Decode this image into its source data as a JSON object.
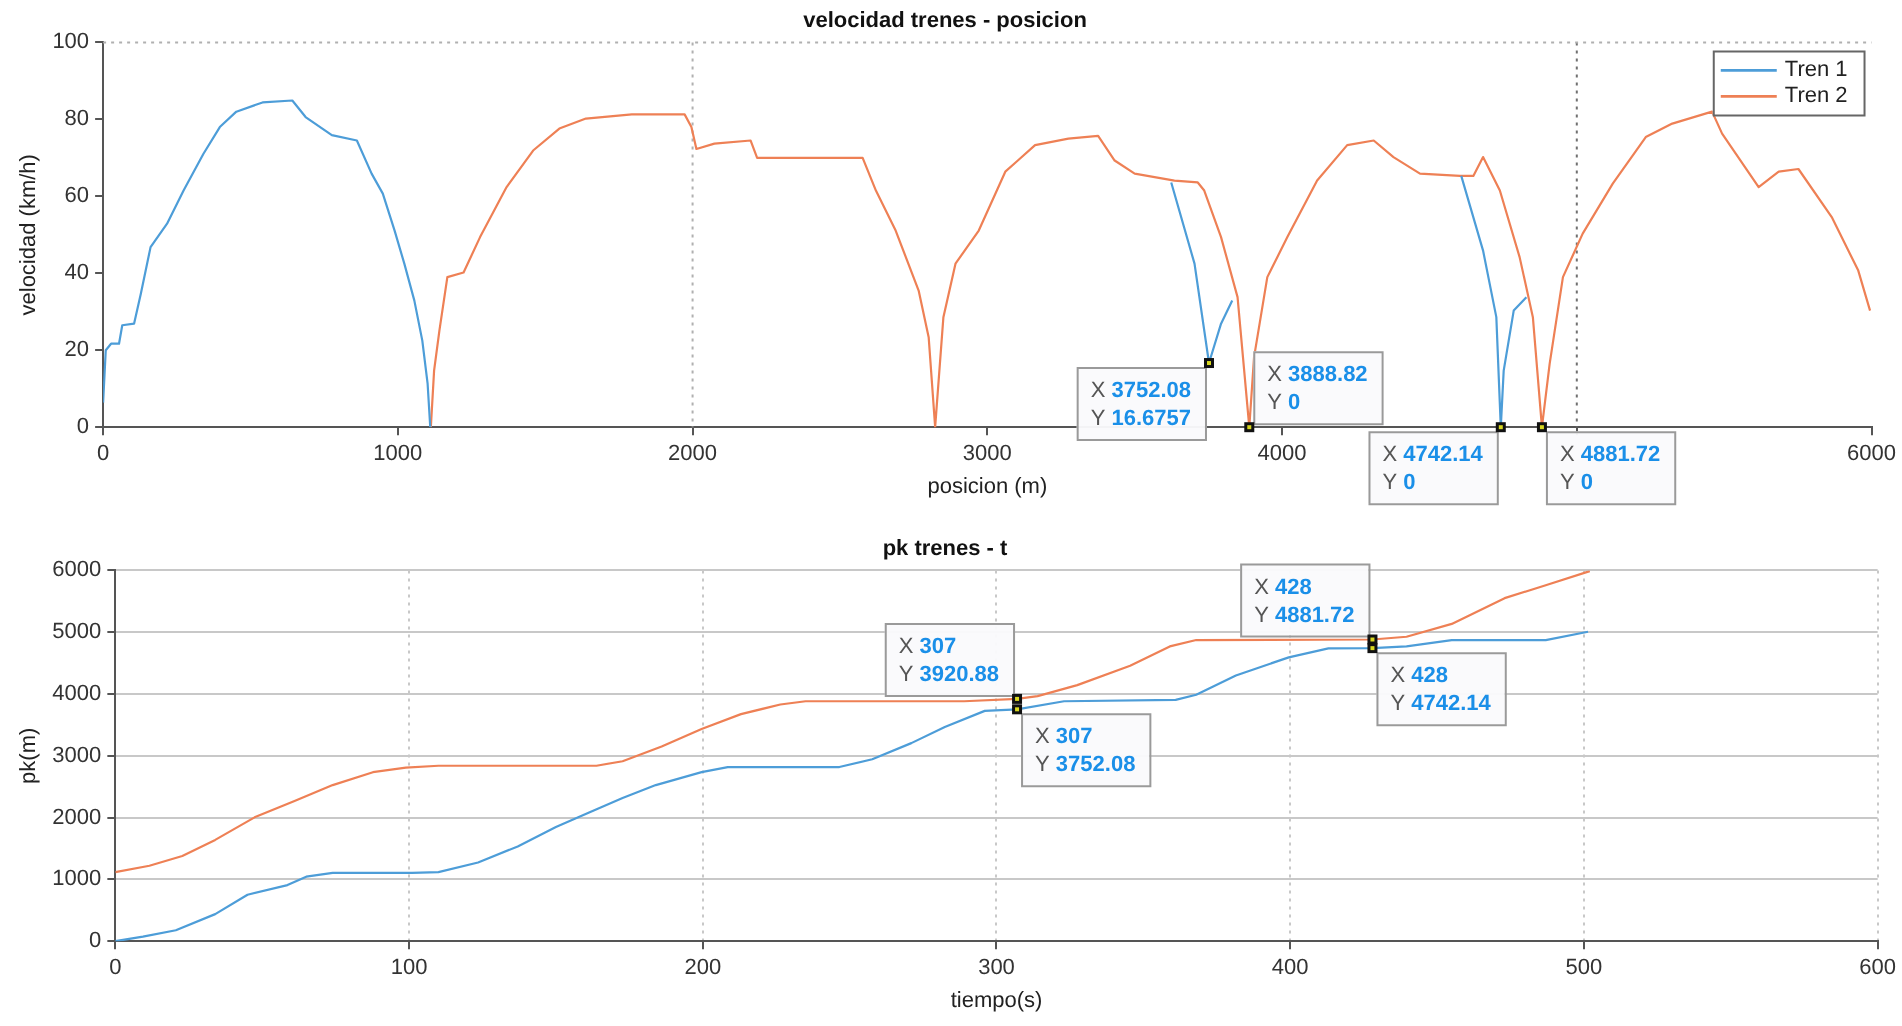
{
  "chart_data": [
    {
      "type": "line",
      "title": "velocidad trenes - posicion",
      "xlabel": "posicion (m)",
      "ylabel": "velocidad (km/h)",
      "xlim": [
        0,
        6000
      ],
      "xticks": [
        0,
        1000,
        2000,
        3000,
        4000,
        {
          "value": 5000,
          "label": null
        },
        6000
      ],
      "ylim": [
        0,
        100
      ],
      "yticks": [
        0,
        20,
        40,
        60,
        80,
        100
      ],
      "grid": false,
      "legend": "top right",
      "ref_lines": [
        {
          "axis": "x",
          "value": 2000,
          "color": "#b0b0b0",
          "line_style": "dotted"
        },
        {
          "axis": "x",
          "value": 5000,
          "color": "#707070",
          "line_style": "dotted"
        },
        {
          "axis": "y",
          "value": 100,
          "color": "#b0b0b0",
          "line_style": "dotted"
        }
      ],
      "series": [
        {
          "name": "Tren 1",
          "color": "#4d9dd8",
          "x": [
            0,
            9,
            27,
            54,
            65,
            105,
            128,
            161,
            217,
            273,
            340,
            396,
            452,
            541,
            642,
            687,
            776,
            861,
            911,
            949,
            989,
            1022,
            1056,
            1083,
            1101,
            1110,
            2000,
            3624,
            3703,
            3752.08,
            3793,
            3831,
            4200,
            4608,
            4682,
            4727,
            4742.14,
            4752,
            4786,
            4829
          ],
          "values": [
            6.4,
            20,
            21.7,
            21.7,
            26.5,
            26.9,
            34.7,
            46.8,
            52.9,
            61.5,
            71,
            78,
            82,
            84.4,
            84.9,
            80.6,
            75.9,
            74.5,
            65.9,
            60.7,
            51.1,
            42.5,
            32.9,
            22.5,
            11.3,
            0,
            null,
            63.6,
            42.5,
            16.6757,
            26.9,
            32.9,
            null,
            65.3,
            45.9,
            28.6,
            0,
            14.7,
            30.3,
            33.8
          ]
        },
        {
          "name": "Tren 2",
          "color": "#ee8055",
          "x": [
            1112,
            1123,
            1141,
            1168,
            1223,
            1279,
            1369,
            1459,
            1548,
            1638,
            1794,
            1973,
            1996,
            2013,
            2074,
            2197,
            2219,
            2577,
            2622,
            2689,
            2767,
            2801,
            2823,
            2851,
            2892,
            2971,
            3061,
            3162,
            3275,
            3376,
            3432,
            3500,
            3635,
            3714,
            3736,
            3793,
            3849,
            3888.82,
            3905,
            3950,
            4018,
            4119,
            4221,
            4311,
            4378,
            4468,
            4604,
            4649,
            4682,
            4739,
            4806,
            4851,
            4881.72,
            4908,
            4953,
            5020,
            5122,
            5234,
            5324,
            5459,
            5493,
            5617,
            5685,
            5752,
            5865,
            5955,
            5995
          ],
          "values": [
            0,
            14.7,
            25.1,
            39,
            40.2,
            49.4,
            62.4,
            71.9,
            77.6,
            80.2,
            81.3,
            81.3,
            78,
            72.3,
            73.7,
            74.5,
            70,
            70,
            61.5,
            51.1,
            35.5,
            23.4,
            0,
            28.6,
            42.5,
            51.1,
            66.4,
            73.3,
            75,
            75.7,
            69.3,
            65.9,
            64.1,
            63.6,
            61.5,
            49.4,
            33.8,
            0,
            18.2,
            39,
            49.4,
            64.1,
            73.3,
            74.5,
            70.2,
            65.9,
            65.3,
            65.3,
            70.2,
            61.5,
            44.2,
            28.6,
            0,
            16.5,
            39,
            50.3,
            63.3,
            75.4,
            78.9,
            82,
            76.3,
            62.4,
            66.4,
            67.1,
            54.6,
            40.7,
            30.3
          ]
        }
      ],
      "annotations": [
        {
          "text": "X 3752.08\nY 16.6757",
          "x": 3752.08,
          "y": 16.6757
        },
        {
          "text": "X 3888.82\nY 0",
          "x": 3888.82,
          "y": 0
        },
        {
          "text": "X 4742.14\nY 0",
          "x": 4742.14,
          "y": 0
        },
        {
          "text": "X 4881.72\nY 0",
          "x": 4881.72,
          "y": 0
        }
      ]
    },
    {
      "type": "line",
      "title": "pk trenes - t",
      "xlabel": "tiempo(s)",
      "ylabel": "pk(m)",
      "xlim": [
        0,
        600
      ],
      "xticks": [
        0,
        100,
        200,
        300,
        400,
        500,
        600
      ],
      "ylim": [
        0,
        6000
      ],
      "yticks": [
        0,
        1000,
        2000,
        3000,
        4000,
        5000,
        6000
      ],
      "grid": true,
      "legend": false,
      "series": [
        {
          "color": "#4d9dd8",
          "x": [
            0,
            9.4,
            20.6,
            34,
            45,
            58.6,
            65,
            74,
            101,
            110,
            123.5,
            137,
            150,
            161.5,
            172.7,
            184,
            199.6,
            208.5,
            246.5,
            257.7,
            271,
            282.4,
            296,
            307,
            323,
            361,
            368,
            381.5,
            399.5,
            413,
            428,
            439.6,
            455,
            487,
            501.4
          ],
          "values": [
            0,
            73,
            177,
            438,
            751,
            908,
            1044,
            1106,
            1106,
            1117,
            1273,
            1534,
            1848,
            2088,
            2317,
            2526,
            2735,
            2818,
            2818,
            2944,
            3205,
            3466,
            3727,
            3752.08,
            3883,
            3904,
            3987,
            4300,
            4593,
            4739,
            4742.14,
            4770,
            4873,
            4873,
            5008
          ]
        },
        {
          "color": "#ee8055",
          "x": [
            0,
            11.6,
            22.8,
            34,
            47.4,
            60.8,
            74,
            87.7,
            98.9,
            110,
            163.8,
            172.7,
            186,
            199.6,
            213,
            226.4,
            235,
            289,
            307,
            314,
            327.5,
            345.5,
            359,
            368,
            428,
            439.6,
            455,
            473,
            487,
            502
          ],
          "values": [
            1117,
            1221,
            1378,
            1639,
            2004,
            2265,
            2526,
            2735,
            2808,
            2839,
            2839,
            2912,
            3152,
            3434,
            3674,
            3830,
            3883,
            3883,
            3920.88,
            3966,
            4144,
            4457,
            4770,
            4873,
            4881.72,
            4926,
            5134,
            5551,
            5759,
            5989
          ]
        }
      ],
      "annotations": [
        {
          "text": "X 307\nY 3920.88",
          "x": 307,
          "y": 3920.88
        },
        {
          "text": "X 307\nY 3752.08",
          "x": 307,
          "y": 3752.08
        },
        {
          "text": "X 428\nY 4881.72",
          "x": 428,
          "y": 4881.72
        },
        {
          "text": "X 428\nY 4742.14",
          "x": 428,
          "y": 4742.14
        }
      ]
    }
  ]
}
